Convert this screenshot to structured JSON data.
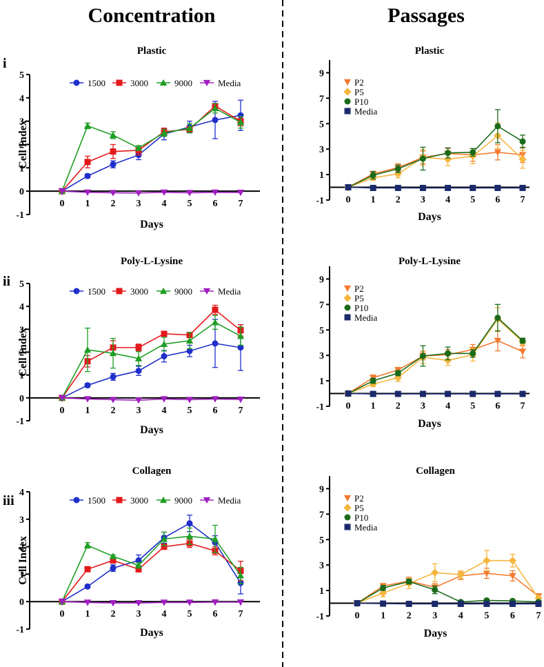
{
  "columns": {
    "left_title": "Concentration",
    "right_title": "Passages"
  },
  "colors": {
    "1500": "#1f2ecb",
    "3000": "#e31a1c",
    "9000": "#1f9e25",
    "Media_left": "#a020c0",
    "P2": "#f47a30",
    "P5": "#f6b63e",
    "P10": "#1a6b1a",
    "Media_right": "#1b2a6b"
  },
  "chart_data": [
    {
      "id": "conc-plastic",
      "type": "line",
      "roman": "i",
      "title": "Plastic",
      "xlabel": "Days",
      "ylabel": "Cell Index",
      "ylim": [
        -1,
        5
      ],
      "yticks": [
        -1,
        0,
        1,
        2,
        3,
        4,
        5
      ],
      "xlim": [
        0,
        7
      ],
      "xticks": [
        0,
        1,
        2,
        3,
        4,
        5,
        6,
        7
      ],
      "legend": "top-horizontal",
      "series": [
        {
          "name": "1500",
          "marker": "circle",
          "colorKey": "1500",
          "values": [
            0,
            0.65,
            1.15,
            1.55,
            2.45,
            2.75,
            3.05,
            3.25
          ],
          "err": [
            0,
            0.08,
            0.15,
            0.2,
            0.25,
            0.25,
            0.8,
            0.65
          ]
        },
        {
          "name": "3000",
          "marker": "square",
          "colorKey": "3000",
          "values": [
            0,
            1.25,
            1.7,
            1.75,
            2.55,
            2.65,
            3.65,
            3.0
          ],
          "err": [
            0,
            0.25,
            0.3,
            0.2,
            0.15,
            0.1,
            0.1,
            0.2
          ]
        },
        {
          "name": "9000",
          "marker": "triangle",
          "colorKey": "9000",
          "values": [
            0,
            2.8,
            2.4,
            1.85,
            2.5,
            2.7,
            3.55,
            2.95
          ],
          "err": [
            0,
            0.12,
            0.15,
            0.1,
            0.15,
            0.2,
            0.2,
            0.25
          ]
        },
        {
          "name": "Media",
          "marker": "triangle-down",
          "colorKey": "Media_left",
          "values": [
            0,
            -0.05,
            -0.07,
            -0.08,
            -0.05,
            -0.07,
            -0.05,
            -0.06
          ],
          "err": [
            0,
            0,
            0,
            0,
            0,
            0,
            0,
            0
          ]
        }
      ]
    },
    {
      "id": "conc-pll",
      "type": "line",
      "roman": "ii",
      "title": "Poly-L-Lysine",
      "xlabel": "Days",
      "ylabel": "Cell Index",
      "ylim": [
        -1,
        5
      ],
      "yticks": [
        -1,
        0,
        1,
        2,
        3,
        4,
        5
      ],
      "xlim": [
        0,
        7
      ],
      "xticks": [
        0,
        1,
        2,
        3,
        4,
        5,
        6,
        7
      ],
      "legend": "top-horizontal",
      "series": [
        {
          "name": "1500",
          "marker": "circle",
          "colorKey": "1500",
          "values": [
            0,
            0.55,
            0.92,
            1.18,
            1.82,
            2.05,
            2.38,
            2.2
          ],
          "err": [
            0,
            0.08,
            0.15,
            0.2,
            0.25,
            0.25,
            1.05,
            1.0
          ]
        },
        {
          "name": "3000",
          "marker": "square",
          "colorKey": "3000",
          "values": [
            0,
            1.6,
            2.2,
            2.2,
            2.8,
            2.75,
            3.85,
            2.95
          ],
          "err": [
            0,
            0.25,
            0.3,
            0.15,
            0.1,
            0.1,
            0.2,
            0.25
          ]
        },
        {
          "name": "9000",
          "marker": "triangle",
          "colorKey": "9000",
          "values": [
            0,
            2.1,
            1.95,
            1.72,
            2.35,
            2.5,
            3.3,
            2.7
          ],
          "err": [
            0,
            0.95,
            0.65,
            0.3,
            0.3,
            0.35,
            0.3,
            0.4
          ]
        },
        {
          "name": "Media",
          "marker": "triangle-down",
          "colorKey": "Media_left",
          "values": [
            0,
            -0.05,
            -0.08,
            -0.1,
            -0.05,
            -0.08,
            -0.05,
            -0.07
          ],
          "err": [
            0,
            0,
            0,
            0,
            0,
            0,
            0,
            0
          ]
        }
      ]
    },
    {
      "id": "conc-collagen",
      "type": "line",
      "roman": "iii",
      "title": "Collagen",
      "xlabel": "Days",
      "ylabel": "Cell Index",
      "ylim": [
        -1,
        4
      ],
      "yticks": [
        -1,
        0,
        1,
        2,
        3,
        4
      ],
      "xlim": [
        0,
        7
      ],
      "xticks": [
        0,
        1,
        2,
        3,
        4,
        5,
        6,
        7
      ],
      "legend": "top-horizontal",
      "series": [
        {
          "name": "1500",
          "marker": "circle",
          "colorKey": "1500",
          "values": [
            0,
            0.55,
            1.22,
            1.5,
            2.33,
            2.85,
            2.15,
            0.68
          ],
          "err": [
            0,
            0.05,
            0.12,
            0.2,
            0.2,
            0.3,
            0.25,
            0.4
          ]
        },
        {
          "name": "3000",
          "marker": "square",
          "colorKey": "3000",
          "values": [
            0,
            1.18,
            1.5,
            1.18,
            2.0,
            2.12,
            1.85,
            1.12
          ],
          "err": [
            0,
            0.05,
            0.1,
            0.1,
            0.1,
            0.15,
            0.15,
            0.35
          ]
        },
        {
          "name": "9000",
          "marker": "triangle",
          "colorKey": "9000",
          "values": [
            0,
            2.05,
            1.65,
            1.32,
            2.28,
            2.38,
            2.28,
            0.95
          ],
          "err": [
            0,
            0.1,
            0.05,
            0.1,
            0.25,
            0.3,
            0.5,
            0.3
          ]
        },
        {
          "name": "Media",
          "marker": "triangle-down",
          "colorKey": "Media_left",
          "values": [
            0,
            -0.03,
            -0.05,
            -0.05,
            -0.03,
            -0.03,
            -0.02,
            -0.02
          ],
          "err": [
            0,
            0,
            0,
            0,
            0,
            0,
            0,
            0
          ]
        }
      ]
    },
    {
      "id": "pass-plastic",
      "type": "line",
      "title": "Plastic",
      "xlabel": "Days",
      "ylabel": "",
      "ylim": [
        -1,
        10
      ],
      "yticks": [
        -1,
        1,
        3,
        5,
        7,
        9
      ],
      "xlim": [
        0,
        7
      ],
      "xticks": [
        0,
        1,
        2,
        3,
        4,
        5,
        6,
        7
      ],
      "legend": "top-left-vertical",
      "series": [
        {
          "name": "P2",
          "marker": "triangle-down",
          "colorKey": "P2",
          "values": [
            0,
            1.05,
            1.55,
            2.35,
            2.65,
            2.55,
            2.75,
            2.55
          ],
          "err": [
            0,
            0.2,
            0.3,
            0.5,
            0.4,
            0.5,
            0.6,
            0.6
          ]
        },
        {
          "name": "P5",
          "marker": "diamond",
          "colorKey": "P5",
          "values": [
            0,
            0.75,
            1.05,
            2.35,
            2.2,
            2.45,
            4.05,
            2.2
          ],
          "err": [
            0,
            0.2,
            0.3,
            0.6,
            0.5,
            0.6,
            1.0,
            0.7
          ]
        },
        {
          "name": "P10",
          "marker": "circle",
          "colorKey": "P10",
          "values": [
            0,
            0.95,
            1.45,
            2.25,
            2.7,
            2.75,
            4.8,
            3.6
          ],
          "err": [
            0,
            0.3,
            0.3,
            0.9,
            0.4,
            0.3,
            1.3,
            0.5
          ]
        },
        {
          "name": "Media",
          "marker": "square",
          "colorKey": "Media_right",
          "values": [
            0,
            -0.05,
            -0.05,
            -0.05,
            -0.05,
            -0.05,
            -0.05,
            -0.05
          ],
          "err": [
            0,
            0,
            0,
            0,
            0,
            0,
            0,
            0
          ]
        }
      ]
    },
    {
      "id": "pass-pll",
      "type": "line",
      "title": "Poly-L-Lysine",
      "xlabel": "Days",
      "ylabel": "",
      "ylim": [
        -1,
        10
      ],
      "yticks": [
        -1,
        1,
        3,
        5,
        7,
        9
      ],
      "xlim": [
        0,
        7
      ],
      "xticks": [
        0,
        1,
        2,
        3,
        4,
        5,
        6,
        7
      ],
      "legend": "top-left-vertical",
      "series": [
        {
          "name": "P2",
          "marker": "triangle-down",
          "colorKey": "P2",
          "values": [
            0,
            1.25,
            1.85,
            2.95,
            3.05,
            3.45,
            4.15,
            3.3
          ],
          "err": [
            0,
            0.2,
            0.2,
            0.3,
            0.4,
            0.4,
            0.8,
            0.5
          ]
        },
        {
          "name": "P5",
          "marker": "diamond",
          "colorKey": "P5",
          "values": [
            0,
            0.75,
            1.25,
            2.85,
            2.6,
            3.05,
            5.85,
            4.05
          ],
          "err": [
            0,
            0.2,
            0.3,
            0.5,
            0.4,
            0.5,
            0.9,
            0.3
          ]
        },
        {
          "name": "P10",
          "marker": "circle",
          "colorKey": "P10",
          "values": [
            0,
            1.0,
            1.6,
            2.95,
            3.15,
            3.15,
            5.95,
            4.15
          ],
          "err": [
            0,
            0.2,
            0.2,
            0.8,
            0.5,
            0.3,
            1.05,
            0.2
          ]
        },
        {
          "name": "Media",
          "marker": "square",
          "colorKey": "Media_right",
          "values": [
            0,
            -0.03,
            -0.03,
            -0.03,
            -0.03,
            -0.03,
            -0.03,
            -0.03
          ],
          "err": [
            0,
            0,
            0,
            0,
            0,
            0,
            0,
            0
          ]
        }
      ]
    },
    {
      "id": "pass-collagen",
      "type": "line",
      "title": "Collagen",
      "xlabel": "Days",
      "ylabel": "",
      "ylim": [
        -1,
        10
      ],
      "yticks": [
        -1,
        1,
        3,
        5,
        7,
        9
      ],
      "xlim": [
        0,
        7
      ],
      "xticks": [
        0,
        1,
        2,
        3,
        4,
        5,
        6,
        7
      ],
      "legend": "top-left-vertical",
      "series": [
        {
          "name": "P2",
          "marker": "triangle-down",
          "colorKey": "P2",
          "values": [
            0,
            1.35,
            1.75,
            1.25,
            2.15,
            2.35,
            2.15,
            0.55
          ],
          "err": [
            0,
            0.2,
            0.3,
            0.3,
            0.3,
            0.4,
            0.4,
            0.2
          ]
        },
        {
          "name": "P5",
          "marker": "diamond",
          "colorKey": "P5",
          "values": [
            0,
            0.8,
            1.55,
            2.4,
            2.25,
            3.35,
            3.35,
            0.4
          ],
          "err": [
            0,
            0.3,
            0.4,
            0.7,
            0.3,
            0.8,
            0.5,
            0.2
          ]
        },
        {
          "name": "P10",
          "marker": "circle",
          "colorKey": "P10",
          "values": [
            0,
            1.2,
            1.7,
            1.05,
            0.1,
            0.22,
            0.18,
            0.1
          ],
          "err": [
            0,
            0.2,
            0.2,
            0.3,
            0.1,
            0.1,
            0.1,
            0.1
          ]
        },
        {
          "name": "Media",
          "marker": "square",
          "colorKey": "Media_right",
          "values": [
            0,
            -0.03,
            -0.05,
            -0.05,
            -0.05,
            -0.05,
            -0.05,
            -0.05
          ],
          "err": [
            0,
            0,
            0,
            0,
            0,
            0,
            0,
            0
          ]
        }
      ]
    }
  ]
}
